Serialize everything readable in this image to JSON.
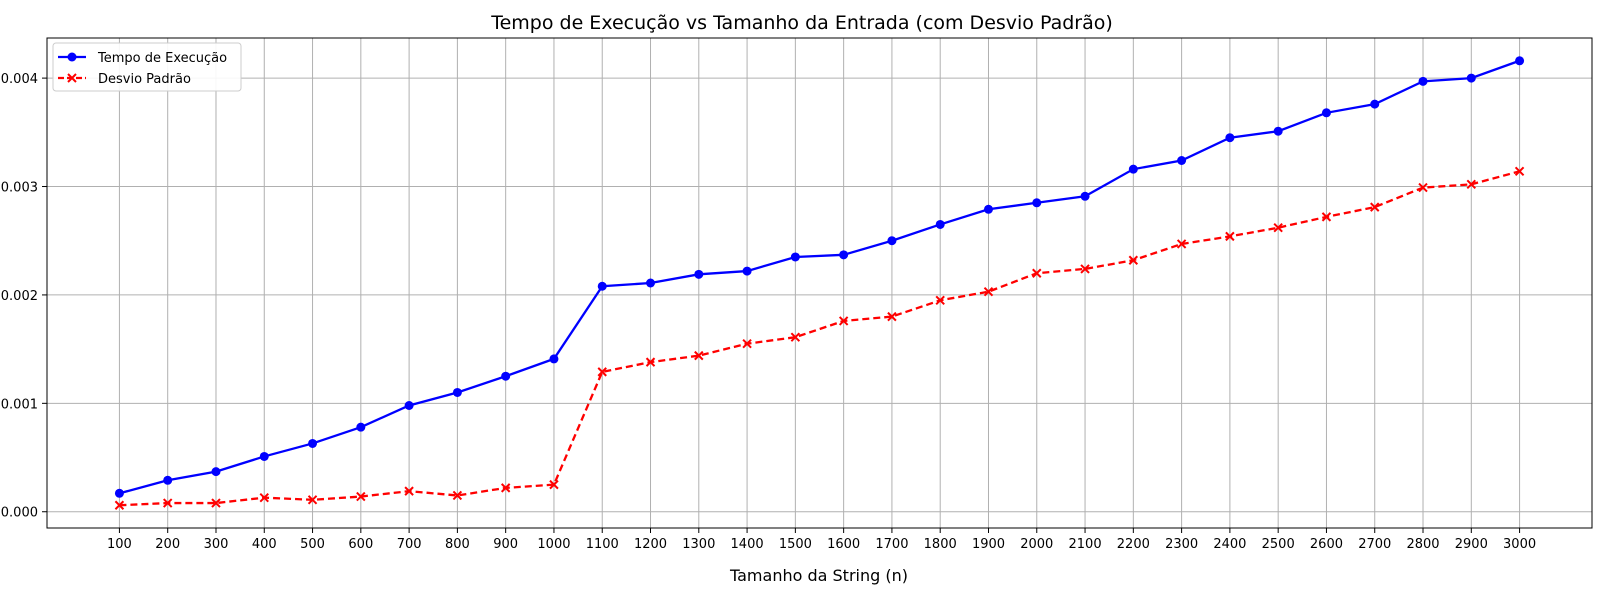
{
  "chart_data": {
    "type": "line",
    "title": "Tempo de Execução vs Tamanho da Entrada (com Desvio Padrão)",
    "xlabel": "Tamanho da String (n)",
    "ylabel": "",
    "x": [
      100,
      200,
      300,
      400,
      500,
      600,
      700,
      800,
      900,
      1000,
      1100,
      1200,
      1300,
      1400,
      1500,
      1600,
      1700,
      1800,
      1900,
      2000,
      2100,
      2200,
      2300,
      2400,
      2500,
      2600,
      2700,
      2800,
      2900,
      3000
    ],
    "x_tick_labels": [
      "100",
      "200",
      "300",
      "400",
      "500",
      "600",
      "700",
      "800",
      "900",
      "1000",
      "1100",
      "1200",
      "1300",
      "1400",
      "1500",
      "1600",
      "1700",
      "1800",
      "1900",
      "2000",
      "2100",
      "2200",
      "2300",
      "2400",
      "2500",
      "2600",
      "2700",
      "2800",
      "2900",
      "3000"
    ],
    "y_ticks": [
      0.0,
      0.001,
      0.002,
      0.003,
      0.004
    ],
    "y_tick_labels": [
      "0.000",
      "0.001",
      "0.002",
      "0.003",
      "0.004"
    ],
    "xlim": [
      -50,
      3150
    ],
    "ylim": [
      -0.00015,
      0.00437
    ],
    "grid": true,
    "legend_position": "top-left",
    "series": [
      {
        "name": "Tempo de Execução",
        "color": "#0000ff",
        "marker": "circle",
        "line_style": "solid",
        "values": [
          0.00017,
          0.00029,
          0.00037,
          0.00051,
          0.00063,
          0.00078,
          0.00098,
          0.0011,
          0.00125,
          0.00141,
          0.00208,
          0.00211,
          0.00219,
          0.00222,
          0.00235,
          0.00237,
          0.0025,
          0.00265,
          0.00279,
          0.00285,
          0.00291,
          0.00316,
          0.00324,
          0.00345,
          0.00351,
          0.00368,
          0.00376,
          0.00397,
          0.004,
          0.00416
        ]
      },
      {
        "name": "Desvio Padrão",
        "color": "#ff0000",
        "marker": "x",
        "line_style": "dashed",
        "values": [
          6e-05,
          8e-05,
          8e-05,
          0.00013,
          0.00011,
          0.00014,
          0.00019,
          0.00015,
          0.00022,
          0.00025,
          0.00129,
          0.00138,
          0.00144,
          0.00155,
          0.00161,
          0.00176,
          0.0018,
          0.00195,
          0.00203,
          0.0022,
          0.00224,
          0.00232,
          0.00247,
          0.00254,
          0.00262,
          0.00272,
          0.00281,
          0.00299,
          0.00302,
          0.00314
        ]
      }
    ]
  }
}
